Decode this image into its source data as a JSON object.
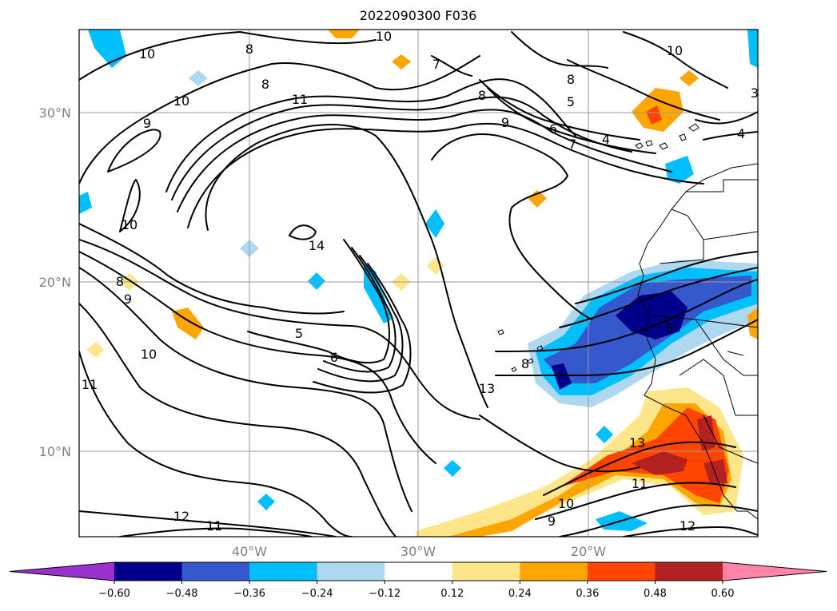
{
  "title": "2022090300 F036",
  "lat_labels": [
    "30°N",
    "20°N",
    "10°N"
  ],
  "lon_labels": [
    "40°W",
    "30°W",
    "20°W"
  ],
  "colorbar": {
    "ticks": [
      "−0.60",
      "−0.48",
      "−0.36",
      "−0.24",
      "−0.12",
      "0.12",
      "0.24",
      "0.36",
      "0.48",
      "0.60"
    ],
    "colors": [
      "#9932cc",
      "#00008b",
      "#3558cc",
      "#00bfff",
      "#add8f0",
      "#ffffff",
      "#fde68a",
      "#ffa500",
      "#ff4500",
      "#b22222",
      "#ff85a8"
    ]
  },
  "contour_labels": [
    "10",
    "10",
    "10",
    "9",
    "10",
    "8",
    "9",
    "11",
    "14",
    "5",
    "6",
    "10",
    "11",
    "13",
    "8",
    "7",
    "8",
    "8",
    "5",
    "9",
    "6",
    "7",
    "4",
    "4",
    "3",
    "12",
    "11",
    "10",
    "13",
    "11",
    "9",
    "12",
    "10",
    "8",
    "8",
    "8"
  ]
}
